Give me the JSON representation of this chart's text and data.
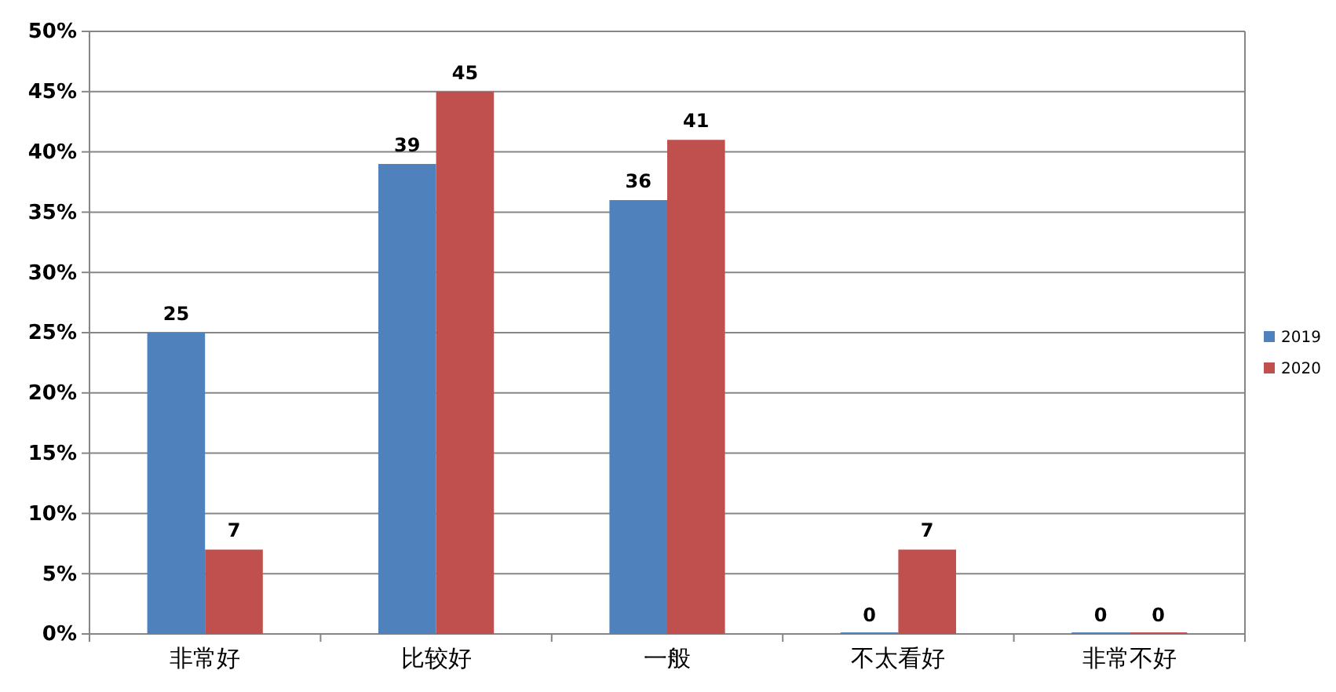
{
  "chart_data": {
    "type": "bar",
    "categories": [
      "非常好",
      "比较好",
      "一般",
      "不太看好",
      "非常不好"
    ],
    "series": [
      {
        "name": "2019",
        "color": "#4f81bd",
        "values": [
          25,
          39,
          36,
          0,
          0
        ]
      },
      {
        "name": "2020",
        "color": "#c0504d",
        "values": [
          7,
          45,
          41,
          7,
          0
        ]
      }
    ],
    "ylim": [
      0,
      50
    ],
    "yticks": [
      {
        "value": 0,
        "label": "0%"
      },
      {
        "value": 5,
        "label": "5%"
      },
      {
        "value": 10,
        "label": "10%"
      },
      {
        "value": 15,
        "label": "15%"
      },
      {
        "value": 20,
        "label": "20%"
      },
      {
        "value": 25,
        "label": "25%"
      },
      {
        "value": 30,
        "label": "30%"
      },
      {
        "value": 35,
        "label": "35%"
      },
      {
        "value": 40,
        "label": "40%"
      },
      {
        "value": 45,
        "label": "45%"
      },
      {
        "value": 50,
        "label": "50%"
      }
    ],
    "grid": "y",
    "legend": "right",
    "data_labels": true
  }
}
